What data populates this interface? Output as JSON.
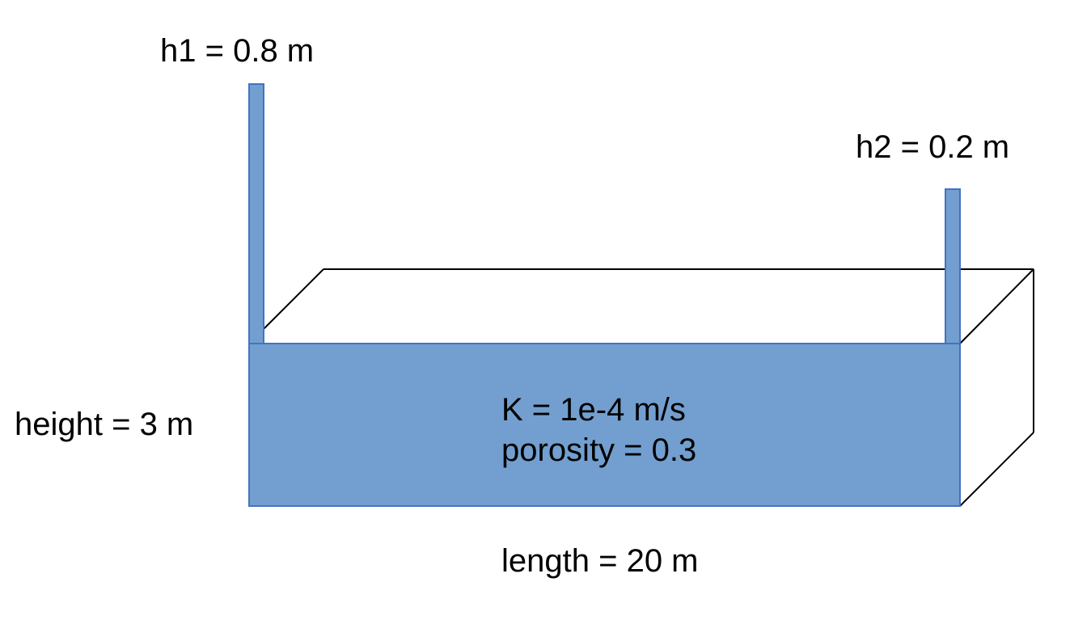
{
  "labels": {
    "h1": "h1 = 0.8 m",
    "h2": "h2 = 0.2 m",
    "height": "height = 3 m",
    "length": "length = 20 m",
    "conductivity": "K = 1e-4 m/s",
    "porosity": "porosity = 0.3"
  },
  "colors": {
    "water": "#729FCF",
    "water_edge": "#4472C4",
    "outline": "#000000",
    "background": "#FFFFFF"
  }
}
